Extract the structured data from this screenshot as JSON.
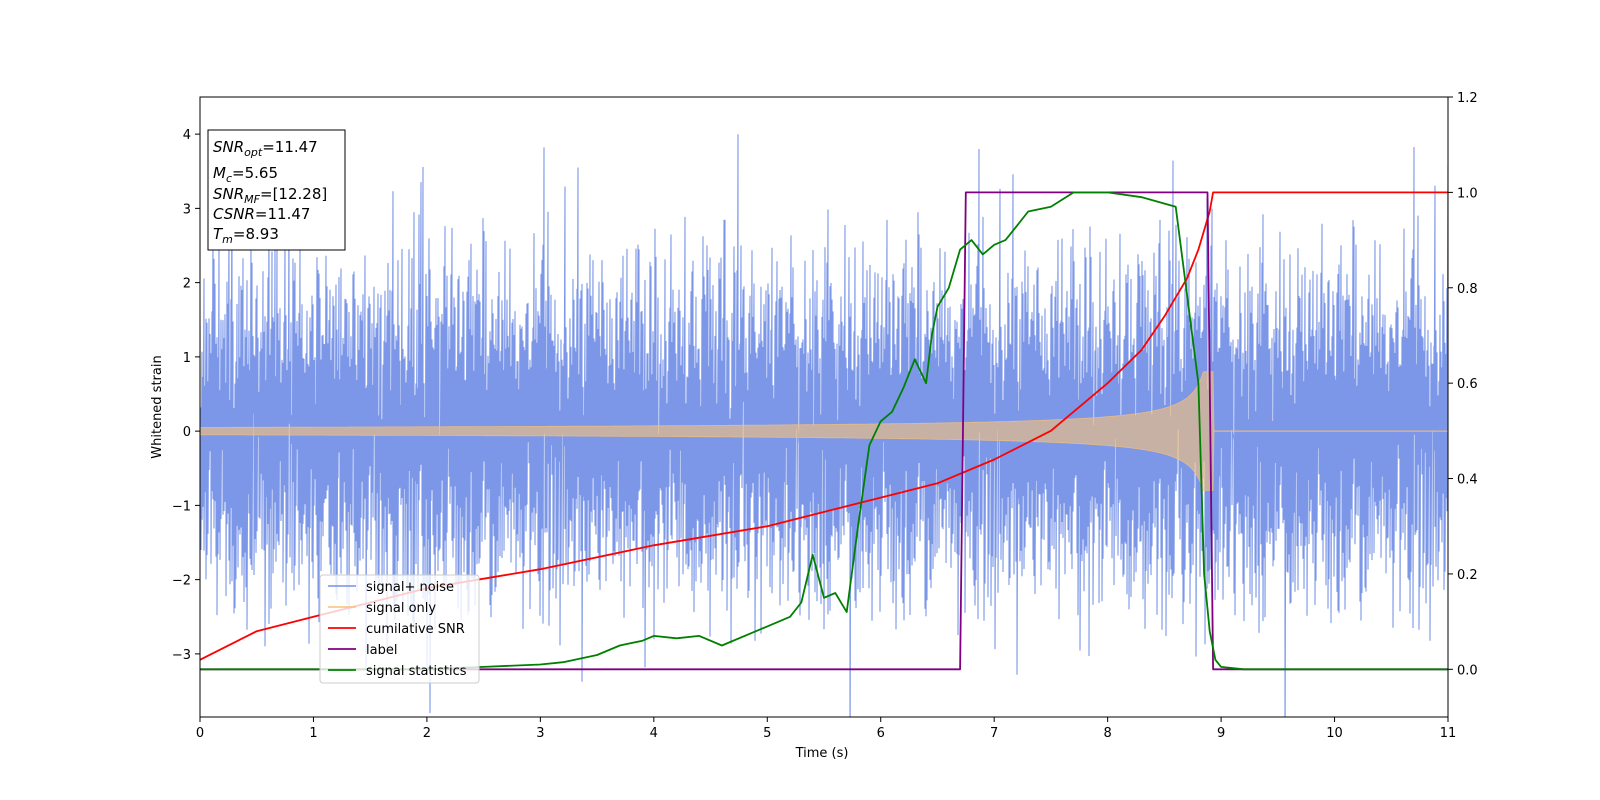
{
  "chart_data": {
    "type": "line",
    "xlabel": "Time (s)",
    "ylabel": "Whitened strain",
    "xlim": [
      0,
      11
    ],
    "ylim_left": [
      -3.85,
      4.5
    ],
    "ylim_right": [
      -0.1,
      1.2
    ],
    "x_ticks": [
      "0",
      "1",
      "2",
      "3",
      "4",
      "5",
      "6",
      "7",
      "8",
      "9",
      "10",
      "11"
    ],
    "y_ticks_left": [
      "4",
      "3",
      "2",
      "1",
      "0",
      "−1",
      "−2",
      "−3"
    ],
    "y_ticks_right": [
      "1.2",
      "1.0",
      "0.8",
      "0.6",
      "0.4",
      "0.2",
      "0.0"
    ],
    "legend_position": "lower-left",
    "legend": [
      "signal+ noise",
      "signal only",
      "cumilative SNR",
      "label",
      "signal statistics"
    ],
    "stats_box": {
      "snr_opt": {
        "sym": "SNR",
        "sub": "opt",
        "val": "=11.47"
      },
      "mc": {
        "sym": "M",
        "sub": "c",
        "val": "=5.65"
      },
      "snr_mf": {
        "sym": "SNR",
        "sub": "MF",
        "val": "=[12.28]"
      },
      "csnr": {
        "sym": "CSNR",
        "val": "=11.47"
      },
      "tm": {
        "sym": "T",
        "sub": "m",
        "val": "=8.93"
      }
    },
    "colors": {
      "signal_noise": "#7591e6",
      "signal_only": "#f5c07a",
      "cumulative_snr": "#ff0000",
      "label": "#800080",
      "signal_statistics": "#008000"
    },
    "series": [
      {
        "name": "signal+ noise",
        "axis": "left",
        "description_values": "dense noise with sigma about 1 on left axis spanning 0 to 11 s",
        "noise_sigma": 1.0
      },
      {
        "name": "signal only",
        "axis": "left",
        "chirp_end_time": 8.93,
        "amplitude_start": 0.05,
        "amplitude_end": 0.8
      },
      {
        "name": "cumilative SNR",
        "axis": "right",
        "x": [
          0,
          0.5,
          1,
          2,
          3,
          4,
          5,
          6,
          6.5,
          7,
          7.5,
          8,
          8.3,
          8.5,
          8.7,
          8.8,
          8.9,
          8.93,
          11
        ],
        "y": [
          0.02,
          0.08,
          0.11,
          0.17,
          0.21,
          0.26,
          0.3,
          0.36,
          0.39,
          0.44,
          0.5,
          0.6,
          0.67,
          0.74,
          0.82,
          0.88,
          0.96,
          1.0,
          1.0
        ]
      },
      {
        "name": "label",
        "axis": "right",
        "x": [
          0,
          6.7,
          6.75,
          8.88,
          8.93,
          11
        ],
        "y": [
          0,
          0,
          1,
          1,
          0,
          0
        ]
      },
      {
        "name": "signal statistics",
        "axis": "right",
        "x": [
          0,
          1,
          2,
          2.5,
          3,
          3.2,
          3.5,
          3.7,
          3.9,
          4.0,
          4.2,
          4.4,
          4.6,
          4.9,
          5.0,
          5.2,
          5.3,
          5.4,
          5.5,
          5.6,
          5.7,
          5.8,
          5.9,
          6.0,
          6.1,
          6.2,
          6.3,
          6.4,
          6.45,
          6.5,
          6.6,
          6.7,
          6.8,
          6.9,
          7.0,
          7.1,
          7.2,
          7.3,
          7.5,
          7.7,
          8.0,
          8.3,
          8.6,
          8.8,
          8.85,
          8.9,
          8.95,
          9.0,
          9.2,
          11
        ],
        "y": [
          0,
          0,
          0,
          0.005,
          0.01,
          0.015,
          0.03,
          0.05,
          0.06,
          0.07,
          0.065,
          0.07,
          0.05,
          0.08,
          0.09,
          0.11,
          0.14,
          0.24,
          0.15,
          0.16,
          0.12,
          0.3,
          0.47,
          0.52,
          0.54,
          0.59,
          0.65,
          0.6,
          0.7,
          0.76,
          0.8,
          0.88,
          0.9,
          0.87,
          0.89,
          0.9,
          0.93,
          0.96,
          0.97,
          1.0,
          1.0,
          0.99,
          0.97,
          0.6,
          0.2,
          0.08,
          0.02,
          0.005,
          0,
          0
        ]
      }
    ]
  }
}
